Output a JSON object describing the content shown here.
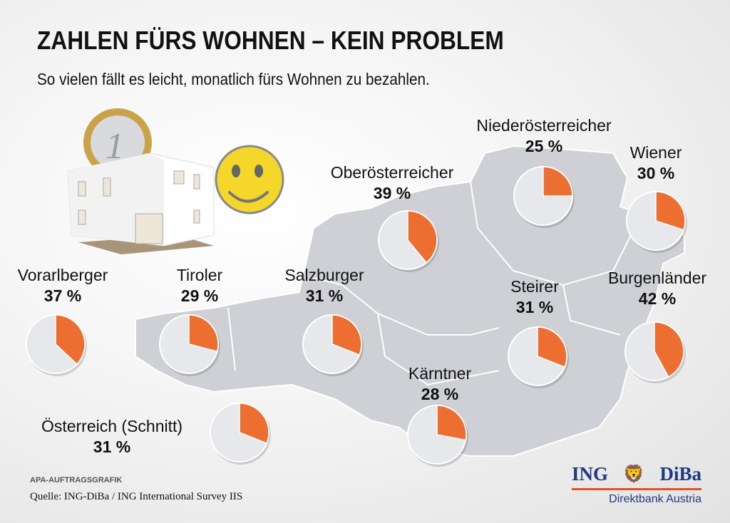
{
  "header": {
    "title": "ZAHLEN FÜRS WOHNEN – KEIN PROBLEM",
    "subtitle": "So vielen fällt es leicht, monatlich fürs Wohnen zu bezahlen."
  },
  "colors": {
    "accent": "#ec6f31",
    "pie_rest": "#e6e8ec",
    "map": "#cfd0d6"
  },
  "chart_data": {
    "type": "pie",
    "title": "ZAHLEN FÜRS WOHNEN – KEIN PROBLEM",
    "subtitle": "So vielen fällt es leicht, monatlich fürs Wohnen zu bezahlen.",
    "unit": "%",
    "series": [
      {
        "name": "Niederösterreicher",
        "value": 25,
        "label": "25 %"
      },
      {
        "name": "Wiener",
        "value": 30,
        "label": "30 %"
      },
      {
        "name": "Oberösterreicher",
        "value": 39,
        "label": "39 %"
      },
      {
        "name": "Vorarlberger",
        "value": 37,
        "label": "37 %"
      },
      {
        "name": "Tiroler",
        "value": 29,
        "label": "29 %"
      },
      {
        "name": "Salzburger",
        "value": 31,
        "label": "31 %"
      },
      {
        "name": "Steirer",
        "value": 31,
        "label": "31 %"
      },
      {
        "name": "Burgenländer",
        "value": 42,
        "label": "42 %"
      },
      {
        "name": "Kärntner",
        "value": 28,
        "label": "28 %"
      },
      {
        "name": "Österreich (Schnitt)",
        "value": 31,
        "label": "31 %"
      }
    ]
  },
  "footer": {
    "agency": "APA-AUFTRAGSGRAFIK",
    "source": "Quelle: ING-DiBa / ING International Survey IIS"
  },
  "logo": {
    "left": "ING",
    "right": "DiBa",
    "tagline": "Direktbank Austria"
  }
}
